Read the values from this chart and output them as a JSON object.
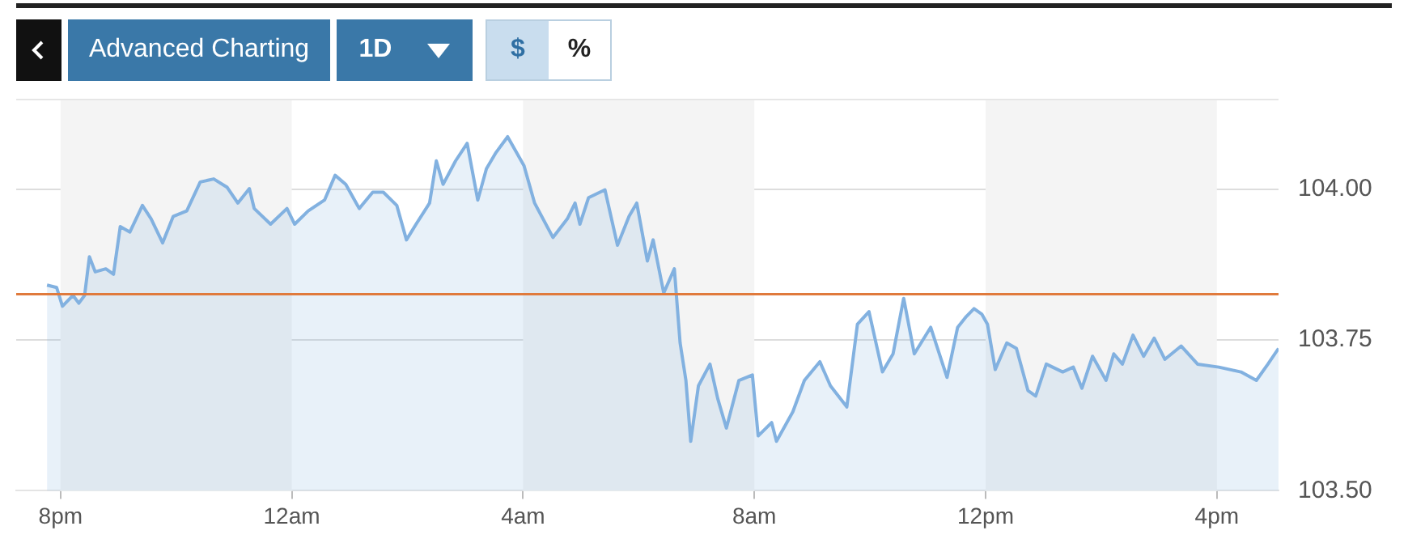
{
  "chart_data": {
    "type": "area",
    "annotations": [
      "Advanced Charting",
      "1D",
      "$",
      "%"
    ],
    "x": [
      "--01-01T19:46",
      "--01-01T19:56",
      "--01-01T20:02",
      "--01-01T20:13",
      "--01-01T20:19",
      "--01-01T20:25",
      "--01-01T20:30",
      "--01-01T20:36",
      "--01-01T20:47",
      "--01-01T20:55",
      "--01-01T21:02",
      "--01-01T21:12",
      "--01-01T21:25",
      "--01-01T21:34",
      "--01-01T21:46",
      "--01-01T21:57",
      "--01-01T22:11",
      "--01-01T22:25",
      "--01-01T22:39",
      "--01-01T22:53",
      "--01-01T23:04",
      "--01-01T23:16",
      "--01-01T23:21",
      "--01-01T23:38",
      "--01-01T23:55",
      "--01-02T00:03",
      "--01-02T00:17",
      "--01-02T00:34",
      "--01-02T00:45",
      "--01-02T00:56",
      "--01-02T01:10",
      "--01-02T01:24",
      "--01-02T01:35",
      "--01-02T01:49",
      "--01-02T01:59",
      "--01-02T02:09",
      "--01-02T02:23",
      "--01-02T02:30",
      "--01-02T02:37",
      "--01-02T02:50",
      "--01-02T03:02",
      "--01-02T03:13",
      "--01-02T03:22",
      "--01-02T03:32",
      "--01-02T03:44",
      "--01-02T04:01",
      "--01-02T04:12",
      "--01-02T04:31",
      "--01-02T04:46",
      "--01-02T04:54",
      "--01-02T04:59",
      "--01-02T05:08",
      "--01-02T05:25",
      "--01-02T05:38",
      "--01-02T05:50",
      "--01-02T05:58",
      "--01-02T06:09",
      "--01-02T06:15",
      "--01-02T06:26",
      "--01-02T06:37",
      "--01-02T06:43",
      "--01-02T06:49",
      "--01-02T06:54",
      "--01-02T07:02",
      "--01-02T07:14",
      "--01-02T07:22",
      "--01-02T07:31",
      "--01-02T07:44",
      "--01-02T07:58",
      "--01-02T08:04",
      "--01-02T08:18",
      "--01-02T08:23",
      "--01-02T08:40",
      "--01-02T08:52",
      "--01-02T09:08",
      "--01-02T09:19",
      "--01-02T09:36",
      "--01-02T09:47",
      "--01-02T09:59",
      "--01-02T10:13",
      "--01-02T10:24",
      "--01-02T10:35",
      "--01-02T10:46",
      "--01-02T11:03",
      "--01-02T11:20",
      "--01-02T11:31",
      "--01-02T11:40",
      "--01-02T11:48",
      "--01-02T11:56",
      "--01-02T12:02",
      "--01-02T12:10",
      "--01-02T12:22",
      "--01-02T12:32",
      "--01-02T12:44",
      "--01-02T12:52",
      "--01-02T13:03",
      "--01-02T13:20",
      "--01-02T13:31",
      "--01-02T13:40",
      "--01-02T13:51",
      "--01-02T14:05",
      "--01-02T14:13",
      "--01-02T14:22",
      "--01-02T14:33",
      "--01-02T14:44",
      "--01-02T14:55",
      "--01-02T15:06",
      "--01-02T15:23",
      "--01-02T15:40",
      "--01-02T16:02",
      "--01-02T16:25",
      "--01-02T16:41",
      "--01-02T16:53",
      "--01-02T17:04"
    ],
    "series": [
      {
        "color": "#82b1e0",
        "values": [
          103.841,
          103.837,
          103.806,
          103.824,
          103.811,
          103.824,
          103.888,
          103.863,
          103.868,
          103.859,
          103.938,
          103.929,
          103.973,
          103.951,
          103.911,
          103.955,
          103.964,
          104.012,
          104.017,
          104.003,
          103.977,
          104.001,
          103.968,
          103.942,
          103.968,
          103.942,
          103.964,
          103.982,
          104.023,
          104.008,
          103.968,
          103.995,
          103.995,
          103.973,
          103.916,
          103.942,
          103.977,
          104.047,
          104.008,
          104.047,
          104.076,
          103.982,
          104.034,
          104.061,
          104.087,
          104.039,
          103.977,
          103.92,
          103.951,
          103.977,
          103.942,
          103.986,
          103.999,
          103.907,
          103.955,
          103.977,
          103.881,
          103.916,
          103.828,
          103.868,
          103.745,
          103.683,
          103.582,
          103.674,
          103.71,
          103.653,
          103.604,
          103.683,
          103.692,
          103.591,
          103.613,
          103.582,
          103.631,
          103.683,
          103.714,
          103.674,
          103.639,
          103.776,
          103.797,
          103.697,
          103.727,
          103.819,
          103.727,
          103.771,
          103.688,
          103.771,
          103.789,
          103.802,
          103.793,
          103.776,
          103.701,
          103.745,
          103.736,
          103.666,
          103.657,
          103.71,
          103.697,
          103.705,
          103.67,
          103.723,
          103.683,
          103.727,
          103.71,
          103.758,
          103.723,
          103.753,
          103.718,
          103.74,
          103.71,
          103.705,
          103.697,
          103.683,
          103.71,
          103.736
        ]
      }
    ],
    "xlim": [
      "--01-01T19:14",
      "--01-02T17:04"
    ],
    "xticks": [
      {
        "value": "--01-01T20:00",
        "label": "8pm"
      },
      {
        "value": "--01-02T00:00",
        "label": "12am"
      },
      {
        "value": "--01-02T04:00",
        "label": "4am"
      },
      {
        "value": "--01-02T08:00",
        "label": "8am"
      },
      {
        "value": "--01-02T12:00",
        "label": "12pm"
      },
      {
        "value": "--01-02T16:00",
        "label": "4pm"
      }
    ],
    "ylim": [
      103.5,
      104.15
    ],
    "yticks": [
      {
        "value": 103.5,
        "label": "103.50"
      },
      {
        "value": 103.75,
        "label": "103.75"
      },
      {
        "value": 104,
        "label": "104.00"
      }
    ],
    "ref_lines": [
      {
        "axis": "y",
        "value": 103.826,
        "color": "#e07a3c"
      }
    ],
    "bands": [
      {
        "axis": "x",
        "from": "--01-01T20:00",
        "to": "--01-02T00:00",
        "color": "#f4f4f4"
      },
      {
        "axis": "x",
        "from": "--01-02T04:00",
        "to": "--01-02T08:00",
        "color": "#f4f4f4"
      },
      {
        "axis": "x",
        "from": "--01-02T12:00",
        "to": "--01-02T16:00",
        "color": "#f4f4f4"
      }
    ],
    "grid": "y",
    "legend": false,
    "marker": "none"
  }
}
